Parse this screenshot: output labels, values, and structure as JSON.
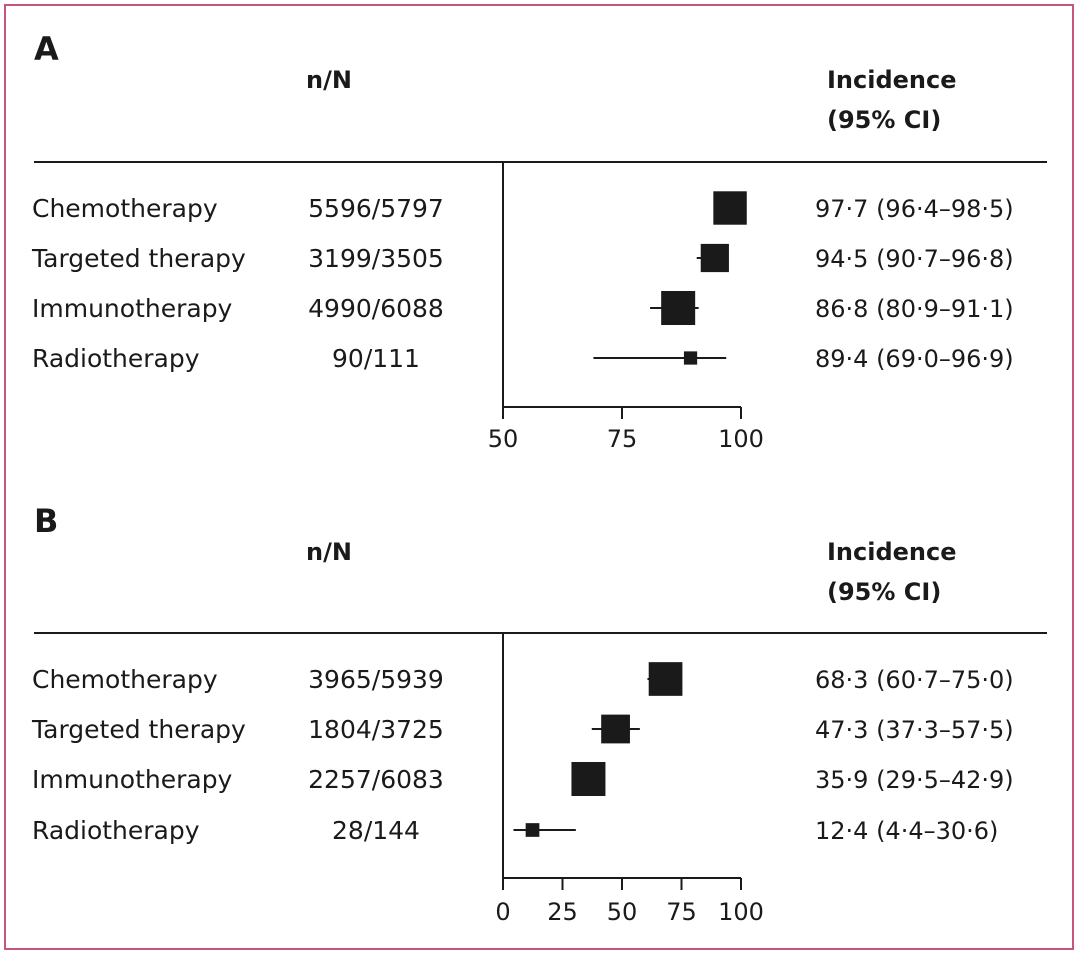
{
  "chart_data": [
    {
      "type": "forest",
      "panel_label": "A",
      "headers": {
        "nn": "n/N",
        "incidence": [
          "Incidence",
          "(95% CI)"
        ]
      },
      "x_ticks": [
        50,
        75,
        100
      ],
      "xlim": [
        50,
        100
      ],
      "rows": [
        {
          "label": "Chemotherapy",
          "nn": "5596/5797",
          "estimate": 97.7,
          "lower": 96.4,
          "upper": 98.5,
          "ci_text": "97·7 (96·4–98·5)",
          "n_total": 5797
        },
        {
          "label": "Targeted therapy",
          "nn": "3199/3505",
          "estimate": 94.5,
          "lower": 90.7,
          "upper": 96.8,
          "ci_text": "94·5 (90·7–96·8)",
          "n_total": 3505
        },
        {
          "label": "Immunotherapy",
          "nn": "4990/6088",
          "estimate": 86.8,
          "lower": 80.9,
          "upper": 91.1,
          "ci_text": "86·8 (80·9–91·1)",
          "n_total": 6088
        },
        {
          "label": "Radiotherapy",
          "nn": "90/111",
          "estimate": 89.4,
          "lower": 69.0,
          "upper": 96.9,
          "ci_text": "89·4 (69·0–96·9)",
          "n_total": 111
        }
      ]
    },
    {
      "type": "forest",
      "panel_label": "B",
      "headers": {
        "nn": "n/N",
        "incidence": [
          "Incidence",
          "(95% CI)"
        ]
      },
      "x_ticks": [
        0,
        25,
        50,
        75,
        100
      ],
      "xlim": [
        0,
        100
      ],
      "rows": [
        {
          "label": "Chemotherapy",
          "nn": "3965/5939",
          "estimate": 68.3,
          "lower": 60.7,
          "upper": 75.0,
          "ci_text": "68·3 (60·7–75·0)",
          "n_total": 5939
        },
        {
          "label": "Targeted therapy",
          "nn": "1804/3725",
          "estimate": 47.3,
          "lower": 37.3,
          "upper": 57.5,
          "ci_text": "47·3 (37·3–57·5)",
          "n_total": 3725
        },
        {
          "label": "Immunotherapy",
          "nn": "2257/6083",
          "estimate": 35.9,
          "lower": 29.5,
          "upper": 42.9,
          "ci_text": "35·9 (29·5–42·9)",
          "n_total": 6083
        },
        {
          "label": "Radiotherapy",
          "nn": "28/144",
          "estimate": 12.4,
          "lower": 4.4,
          "upper": 30.6,
          "ci_text": "12·4 (4·4–30·6)",
          "n_total": 144
        }
      ]
    }
  ],
  "colors": {
    "frame": "#c7557c",
    "ink": "#1a1a1a"
  }
}
